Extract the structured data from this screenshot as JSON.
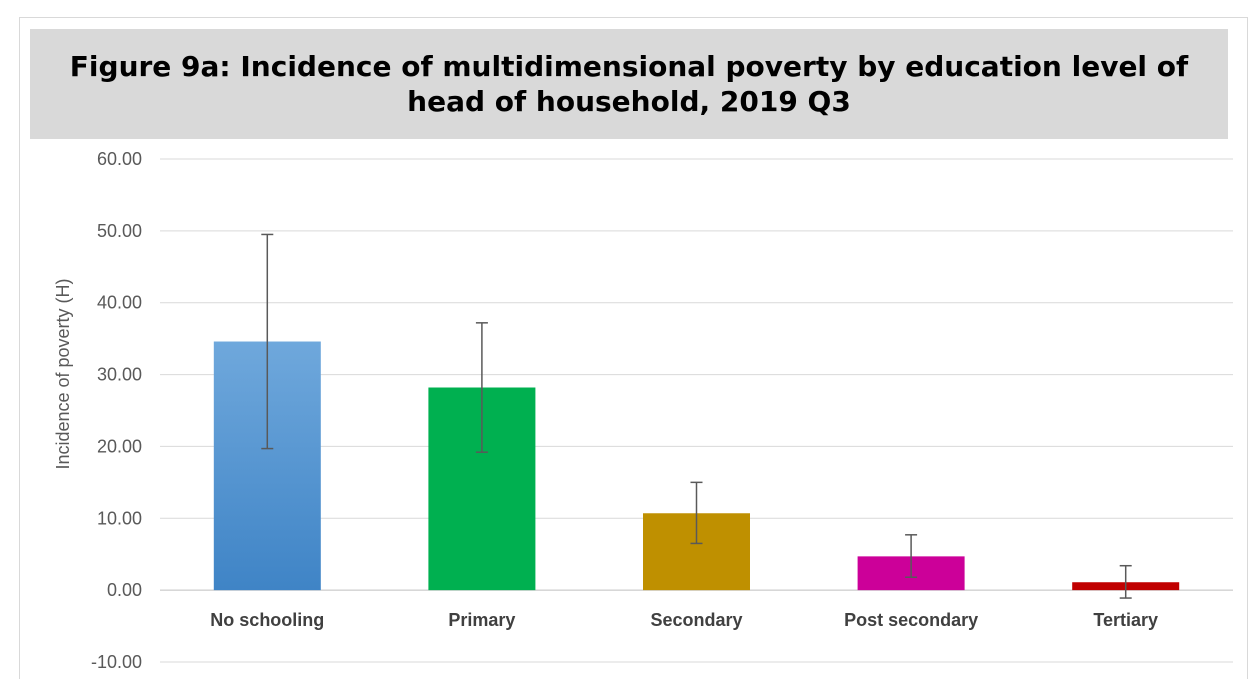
{
  "chart_data": {
    "type": "bar",
    "title": "Figure 9a: Incidence of multidimensional poverty by education level of head of household, 2019 Q3",
    "xlabel": "",
    "ylabel": "Incidence of poverty (H)",
    "ylim": [
      -10,
      60
    ],
    "yticks": [
      "60.00",
      "50.00",
      "40.00",
      "30.00",
      "20.00",
      "10.00",
      "0.00",
      "-10.00"
    ],
    "ytick_values": [
      60,
      50,
      40,
      30,
      20,
      10,
      0,
      -10
    ],
    "grid": true,
    "legend": "none",
    "categories": [
      "No schooling",
      "Primary",
      "Secondary",
      "Post secondary",
      "Tertiary"
    ],
    "values": [
      34.6,
      28.2,
      10.7,
      4.7,
      1.1
    ],
    "error_low": [
      19.7,
      19.2,
      6.5,
      1.8,
      -1.1
    ],
    "error_high": [
      49.5,
      37.2,
      15.0,
      7.7,
      3.4
    ],
    "colors": [
      "#5b9bd5",
      "#00b050",
      "#bf9000",
      "#cc0099",
      "#c00000"
    ]
  }
}
